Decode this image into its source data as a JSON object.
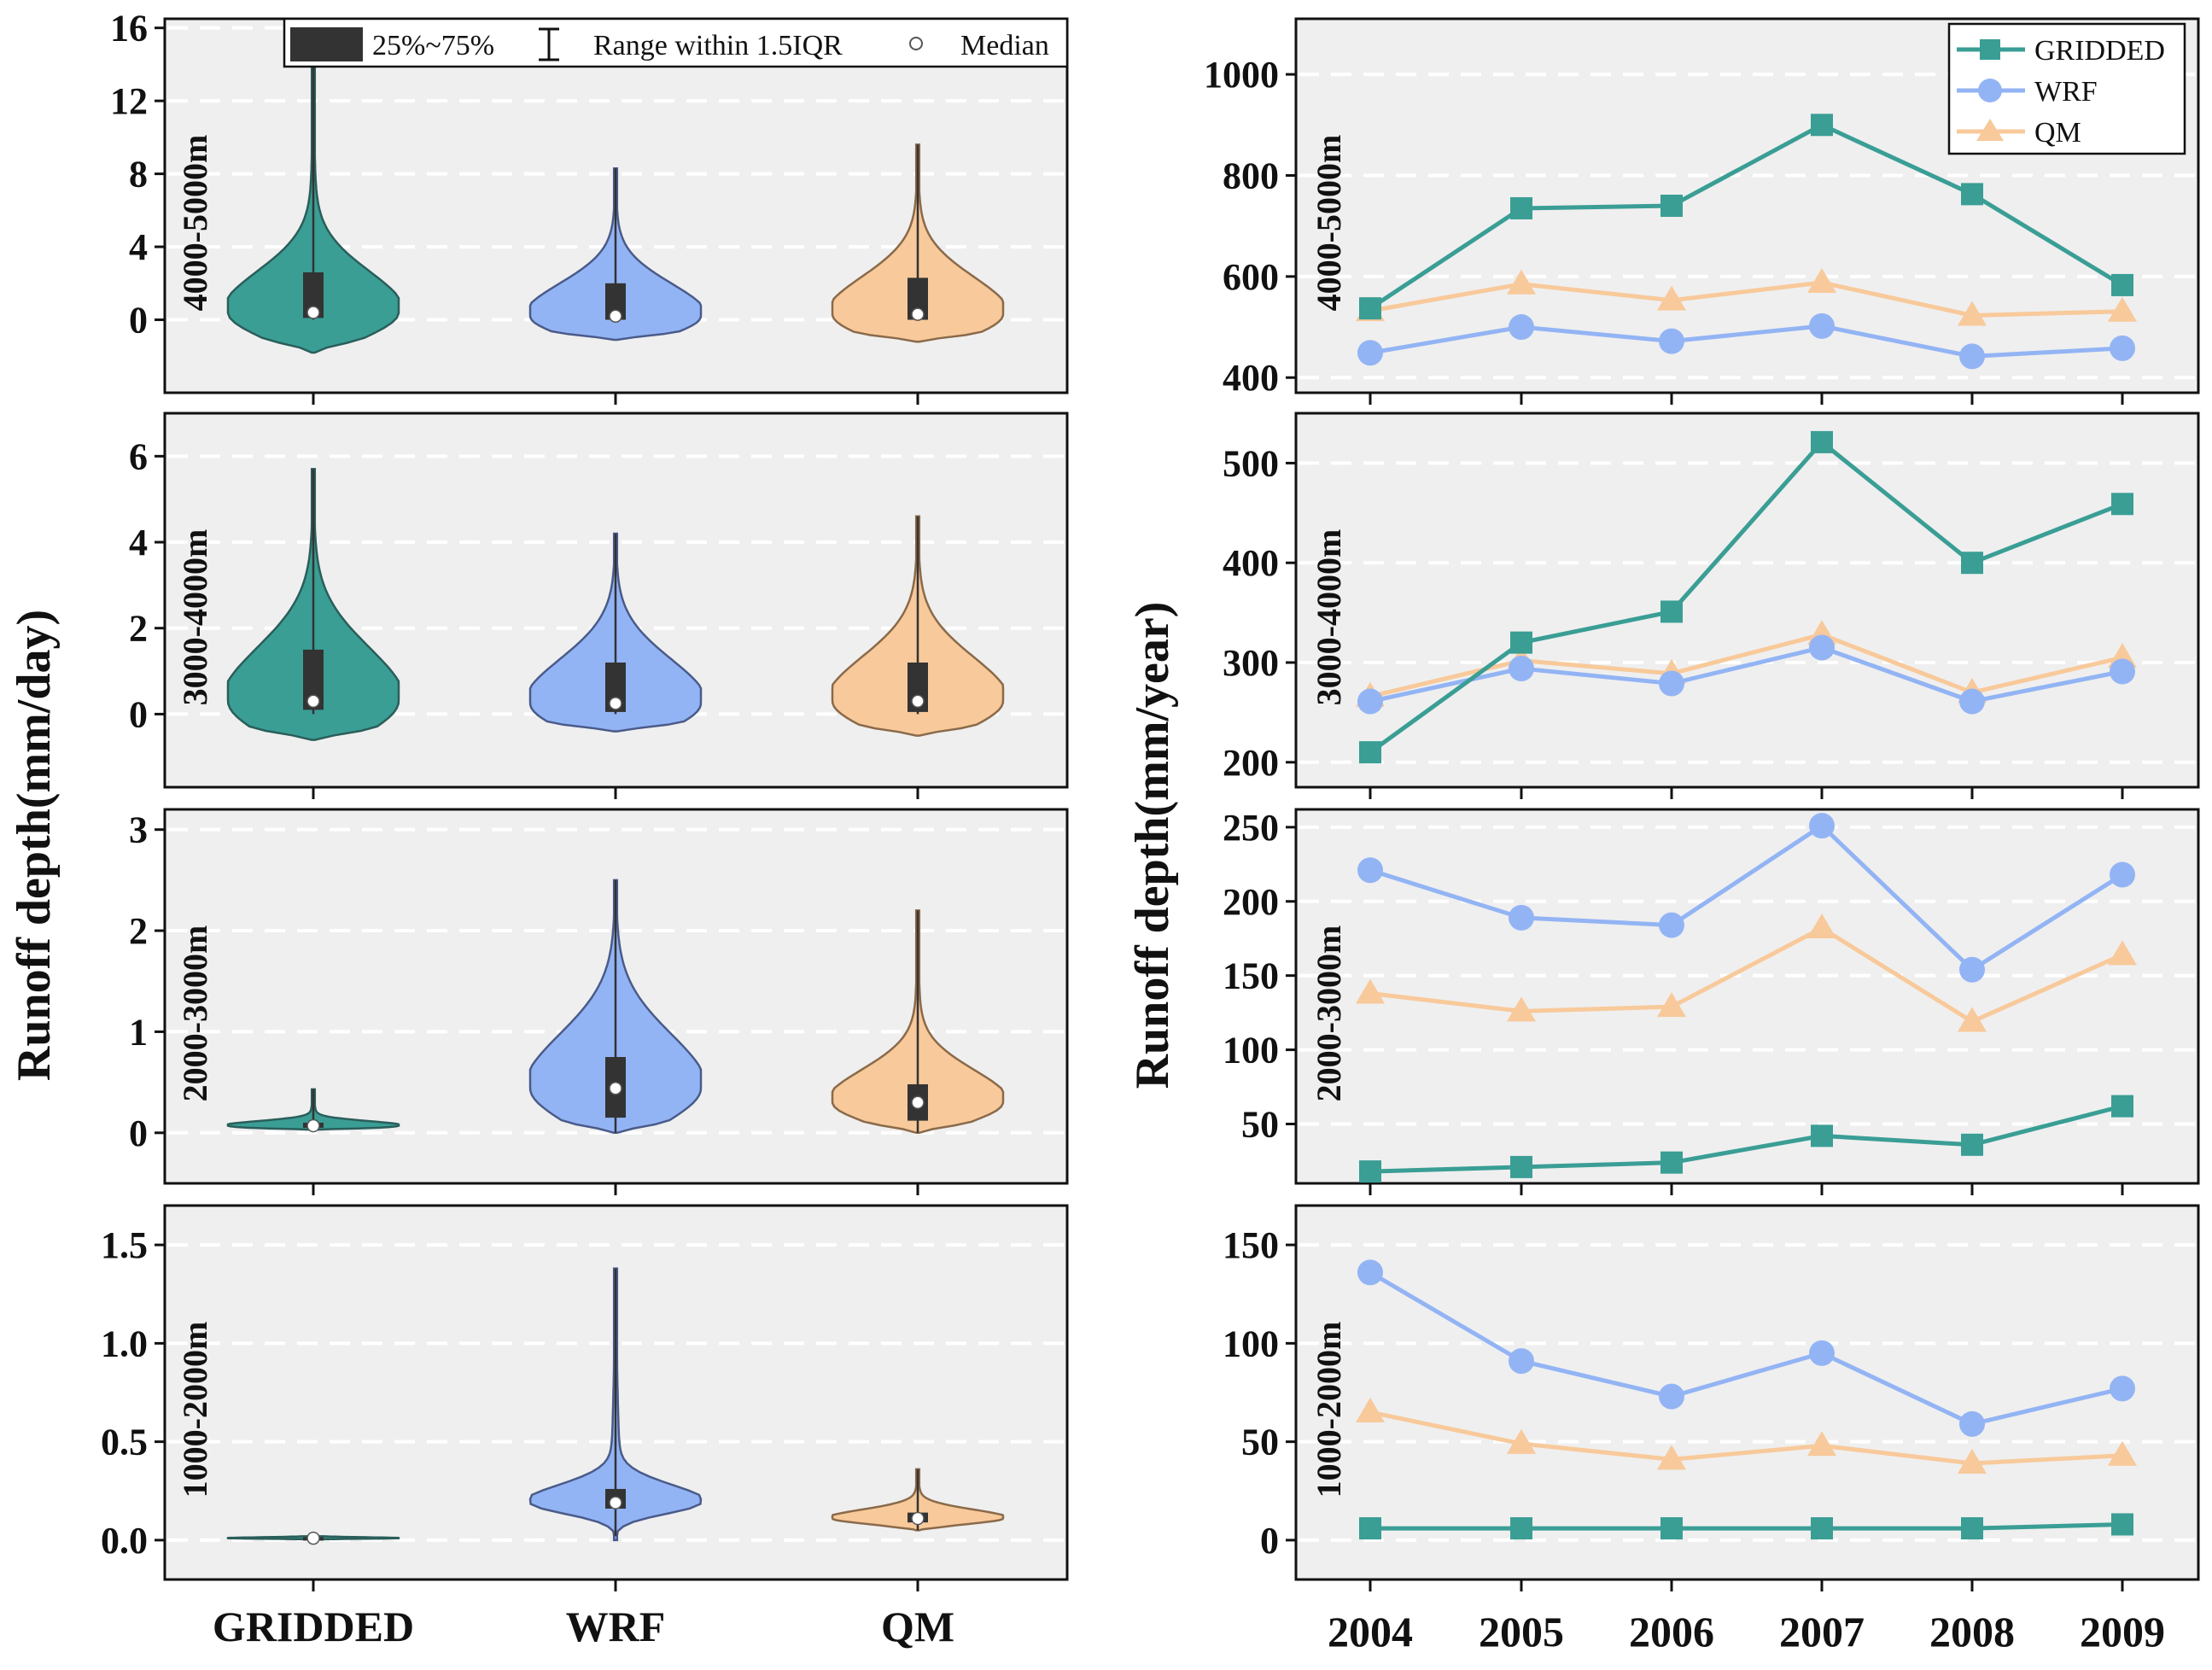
{
  "colors": {
    "gridded": "#3a9e95",
    "wrf": "#93b4f4",
    "qm": "#f8c99a",
    "box": "#333333",
    "panel_bg": "#efefef",
    "grid": "#ffffff"
  },
  "left": {
    "ylabel": "Runoff depth(mm/day)",
    "categories": [
      "GRIDDED",
      "WRF",
      "QM"
    ],
    "legend": {
      "iqr_label": "25%~75%",
      "range_label": "Range within 1.5IQR",
      "median_label": "Median"
    }
  },
  "right": {
    "ylabel": "Runoff depth(mm/year)",
    "years": [
      "2004",
      "2005",
      "2006",
      "2007",
      "2008",
      "2009"
    ],
    "legend": [
      "GRIDDED",
      "WRF",
      "QM"
    ]
  },
  "chart_data": [
    {
      "type": "violin",
      "title": "4000-5000m",
      "xlabel": "",
      "ylabel": "Runoff depth(mm/day)",
      "ylim": [
        -4,
        16.5
      ],
      "yticks": [
        0,
        4,
        8,
        12,
        16
      ],
      "categories": [
        "GRIDDED",
        "WRF",
        "QM"
      ],
      "series": [
        {
          "name": "GRIDDED",
          "median": 0.4,
          "q1": 0.1,
          "q3": 2.6,
          "whisker_low": 0,
          "whisker_high": 14.5,
          "min": -1.8,
          "max": 14.5
        },
        {
          "name": "WRF",
          "median": 0.2,
          "q1": 0.0,
          "q3": 2.0,
          "whisker_low": 0,
          "whisker_high": 8.3,
          "min": -1.1,
          "max": 8.3
        },
        {
          "name": "QM",
          "median": 0.3,
          "q1": 0.0,
          "q3": 2.3,
          "whisker_low": 0,
          "whisker_high": 9.6,
          "min": -1.2,
          "max": 9.6
        }
      ]
    },
    {
      "type": "violin",
      "title": "3000-4000m",
      "xlabel": "",
      "ylabel": "Runoff depth(mm/day)",
      "ylim": [
        -1.7,
        7.0
      ],
      "yticks": [
        0,
        2,
        4,
        6
      ],
      "categories": [
        "GRIDDED",
        "WRF",
        "QM"
      ],
      "series": [
        {
          "name": "GRIDDED",
          "median": 0.3,
          "q1": 0.1,
          "q3": 1.5,
          "whisker_low": 0,
          "whisker_high": 5.7,
          "min": -0.6,
          "max": 5.7
        },
        {
          "name": "WRF",
          "median": 0.25,
          "q1": 0.05,
          "q3": 1.2,
          "whisker_low": 0,
          "whisker_high": 4.2,
          "min": -0.4,
          "max": 4.2
        },
        {
          "name": "QM",
          "median": 0.3,
          "q1": 0.05,
          "q3": 1.2,
          "whisker_low": 0,
          "whisker_high": 4.6,
          "min": -0.5,
          "max": 4.6
        }
      ]
    },
    {
      "type": "violin",
      "title": "2000-3000m",
      "xlabel": "",
      "ylabel": "Runoff depth(mm/day)",
      "ylim": [
        -0.5,
        3.2
      ],
      "yticks": [
        0,
        1,
        2,
        3
      ],
      "categories": [
        "GRIDDED",
        "WRF",
        "QM"
      ],
      "series": [
        {
          "name": "GRIDDED",
          "median": 0.07,
          "q1": 0.05,
          "q3": 0.1,
          "whisker_low": 0.03,
          "whisker_high": 0.43,
          "min": 0.03,
          "max": 0.43
        },
        {
          "name": "WRF",
          "median": 0.44,
          "q1": 0.15,
          "q3": 0.75,
          "whisker_low": 0.0,
          "whisker_high": 2.5,
          "min": 0.0,
          "max": 2.5
        },
        {
          "name": "QM",
          "median": 0.3,
          "q1": 0.12,
          "q3": 0.48,
          "whisker_low": 0.0,
          "whisker_high": 2.2,
          "min": 0.0,
          "max": 2.2
        }
      ]
    },
    {
      "type": "violin",
      "title": "1000-2000m",
      "xlabel": "",
      "ylabel": "Runoff depth(mm/day)",
      "ylim": [
        -0.2,
        1.7
      ],
      "yticks": [
        0.0,
        0.5,
        1.0,
        1.5
      ],
      "categories": [
        "GRIDDED",
        "WRF",
        "QM"
      ],
      "series": [
        {
          "name": "GRIDDED",
          "median": 0.01,
          "q1": 0.01,
          "q3": 0.015,
          "whisker_low": 0.0,
          "whisker_high": 0.02,
          "min": 0.0,
          "max": 0.02
        },
        {
          "name": "WRF",
          "median": 0.19,
          "q1": 0.16,
          "q3": 0.26,
          "whisker_low": 0.02,
          "whisker_high": 1.38,
          "min": 0.0,
          "max": 1.38
        },
        {
          "name": "QM",
          "median": 0.11,
          "q1": 0.09,
          "q3": 0.14,
          "whisker_low": 0.05,
          "whisker_high": 0.36,
          "min": 0.05,
          "max": 0.36
        }
      ]
    },
    {
      "type": "line",
      "title": "4000-5000m",
      "xlabel": "",
      "ylabel": "Runoff depth(mm/year)",
      "ylim": [
        370,
        1110
      ],
      "yticks": [
        400,
        600,
        800,
        1000
      ],
      "x": [
        "2004",
        "2005",
        "2006",
        "2007",
        "2008",
        "2009"
      ],
      "series": [
        {
          "name": "GRIDDED",
          "values": [
            537,
            735,
            740,
            900,
            763,
            583
          ]
        },
        {
          "name": "WRF",
          "values": [
            449,
            500,
            472,
            502,
            442,
            458
          ]
        },
        {
          "name": "QM",
          "values": [
            532,
            585,
            553,
            588,
            523,
            531
          ]
        }
      ]
    },
    {
      "type": "line",
      "title": "3000-4000m",
      "xlabel": "",
      "ylabel": "Runoff depth(mm/year)",
      "ylim": [
        175,
        550
      ],
      "yticks": [
        200,
        300,
        400,
        500
      ],
      "x": [
        "2004",
        "2005",
        "2006",
        "2007",
        "2008",
        "2009"
      ],
      "series": [
        {
          "name": "GRIDDED",
          "values": [
            210,
            320,
            351,
            521,
            400,
            459
          ]
        },
        {
          "name": "WRF",
          "values": [
            261,
            294,
            279,
            315,
            261,
            291
          ]
        },
        {
          "name": "QM",
          "values": [
            266,
            302,
            289,
            328,
            270,
            305
          ]
        }
      ]
    },
    {
      "type": "line",
      "title": "2000-3000m",
      "xlabel": "",
      "ylabel": "Runoff depth(mm/year)",
      "ylim": [
        10,
        262
      ],
      "yticks": [
        50,
        100,
        150,
        200,
        250
      ],
      "x": [
        "2004",
        "2005",
        "2006",
        "2007",
        "2008",
        "2009"
      ],
      "series": [
        {
          "name": "GRIDDED",
          "values": [
            18,
            21,
            24,
            42,
            36,
            62
          ]
        },
        {
          "name": "WRF",
          "values": [
            221,
            189,
            184,
            251,
            154,
            218
          ]
        },
        {
          "name": "QM",
          "values": [
            138,
            126,
            129,
            182,
            119,
            164
          ]
        }
      ]
    },
    {
      "type": "line",
      "title": "1000-2000m",
      "xlabel": "",
      "ylabel": "Runoff depth(mm/year)",
      "ylim": [
        -20,
        170
      ],
      "yticks": [
        0,
        50,
        100,
        150
      ],
      "x": [
        "2004",
        "2005",
        "2006",
        "2007",
        "2008",
        "2009"
      ],
      "series": [
        {
          "name": "GRIDDED",
          "values": [
            6,
            6,
            6,
            6,
            6,
            8
          ]
        },
        {
          "name": "WRF",
          "values": [
            136,
            91,
            73,
            95,
            59,
            77
          ]
        },
        {
          "name": "QM",
          "values": [
            65,
            49,
            41,
            48,
            39,
            43
          ]
        }
      ]
    }
  ]
}
